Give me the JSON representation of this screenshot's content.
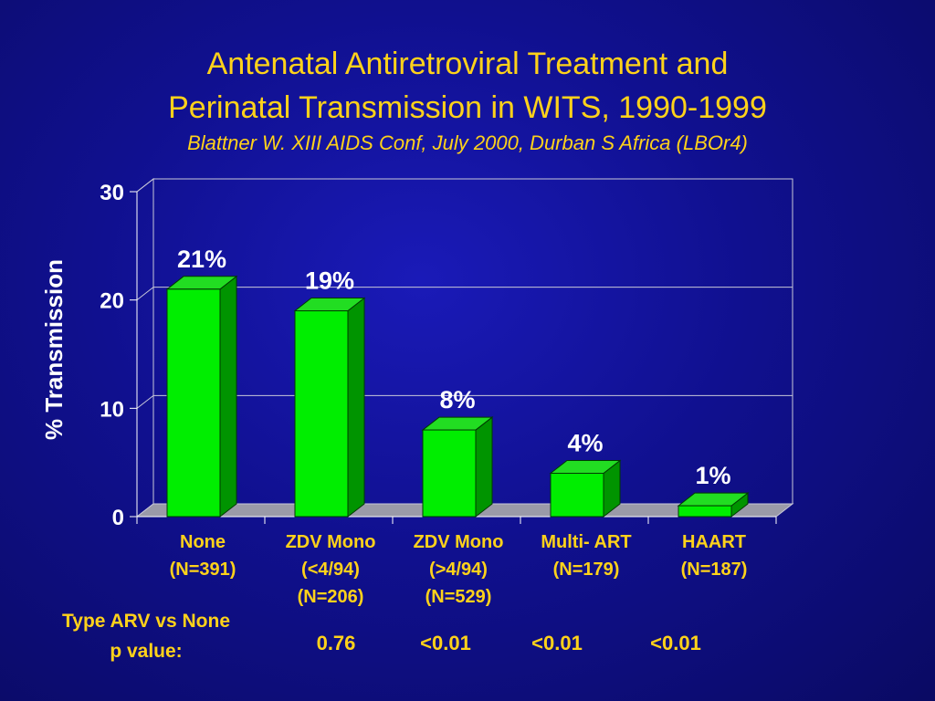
{
  "slide": {
    "title_line1": "Antenatal Antiretroviral Treatment and",
    "title_line2": "Perinatal Transmission in WITS, 1990-1999",
    "subtitle": "Blattner W.  XIII AIDS Conf, July 2000, Durban S Africa (LBOr4)"
  },
  "chart_data": {
    "type": "bar",
    "title": "",
    "ylabel": "% Transmission",
    "xlabel": "",
    "ylim": [
      0,
      30
    ],
    "yticks": [
      "0",
      "10",
      "20",
      "30"
    ],
    "grid": true,
    "categories": [
      [
        "None",
        "(N=391)"
      ],
      [
        "ZDV Mono",
        "(<4/94)",
        "(N=206)"
      ],
      [
        "ZDV Mono",
        "(>4/94)",
        "(N=529)"
      ],
      [
        "Multi- ART",
        "(N=179)"
      ],
      [
        "HAART",
        "(N=187)"
      ]
    ],
    "values": [
      21,
      19,
      8,
      4,
      1
    ],
    "data_labels": [
      "21%",
      "19%",
      "8%",
      "4%",
      "1%"
    ],
    "bar_color": "#00ee00"
  },
  "footer": {
    "label_line1": "Type ARV vs None",
    "label_line2": "p value:",
    "p_values": [
      "0.76",
      "<0.01",
      "<0.01",
      "<0.01"
    ]
  },
  "colors": {
    "text_yellow": "#ffd21a",
    "axis_text": "#ffffff"
  }
}
